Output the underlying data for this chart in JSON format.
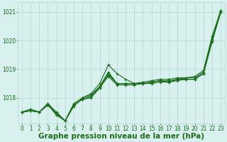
{
  "xlabel": "Graphe pression niveau de la mer (hPa)",
  "x": [
    0,
    1,
    2,
    3,
    4,
    5,
    6,
    7,
    8,
    9,
    10,
    11,
    12,
    13,
    14,
    15,
    16,
    17,
    18,
    19,
    20,
    21,
    22,
    23
  ],
  "series": [
    [
      1017.5,
      1017.6,
      1017.5,
      1017.8,
      1017.5,
      1017.2,
      1017.7,
      1018.0,
      1018.15,
      1018.5,
      1019.15,
      1018.85,
      1018.65,
      1018.5,
      1018.55,
      1018.6,
      1018.65,
      1018.65,
      1018.7,
      1018.7,
      1018.75,
      1018.95,
      1020.15,
      1021.05
    ],
    [
      1017.5,
      1017.6,
      1017.5,
      1017.8,
      1017.4,
      1017.2,
      1017.8,
      1018.0,
      1018.1,
      1018.4,
      1018.9,
      1018.5,
      1018.5,
      1018.5,
      1018.5,
      1018.55,
      1018.6,
      1018.6,
      1018.65,
      1018.7,
      1018.7,
      1018.9,
      1020.05,
      1021.05
    ],
    [
      1017.5,
      1017.55,
      1017.5,
      1017.75,
      1017.45,
      1017.2,
      1017.75,
      1017.95,
      1018.05,
      1018.4,
      1018.85,
      1018.5,
      1018.5,
      1018.5,
      1018.5,
      1018.55,
      1018.6,
      1018.55,
      1018.65,
      1018.65,
      1018.65,
      1018.85,
      1020.0,
      1021.0
    ],
    [
      1017.5,
      1017.55,
      1017.5,
      1017.75,
      1017.45,
      1017.2,
      1017.75,
      1017.95,
      1018.05,
      1018.35,
      1018.8,
      1018.5,
      1018.5,
      1018.5,
      1018.5,
      1018.55,
      1018.6,
      1018.55,
      1018.65,
      1018.65,
      1018.65,
      1018.85,
      1020.0,
      1021.0
    ],
    [
      1017.5,
      1017.55,
      1017.5,
      1017.75,
      1017.4,
      1017.2,
      1017.75,
      1017.95,
      1018.0,
      1018.35,
      1018.75,
      1018.45,
      1018.45,
      1018.45,
      1018.5,
      1018.5,
      1018.55,
      1018.55,
      1018.6,
      1018.65,
      1018.65,
      1018.85,
      1019.95,
      1021.0
    ]
  ],
  "line_color": "#1a6e1a",
  "marker": "+",
  "bg_color": "#d8f0ee",
  "grid_color": "#b0d8d4",
  "text_color": "#1a6e1a",
  "ylim": [
    1017.1,
    1021.35
  ],
  "yticks": [
    1018,
    1019,
    1020,
    1021
  ],
  "xticks": [
    0,
    1,
    2,
    3,
    4,
    5,
    6,
    7,
    8,
    9,
    10,
    11,
    12,
    13,
    14,
    15,
    16,
    17,
    18,
    19,
    20,
    21,
    22,
    23
  ],
  "tick_fontsize": 5.5,
  "xlabel_fontsize": 7.5,
  "linewidth": 0.8,
  "markersize": 3.0
}
